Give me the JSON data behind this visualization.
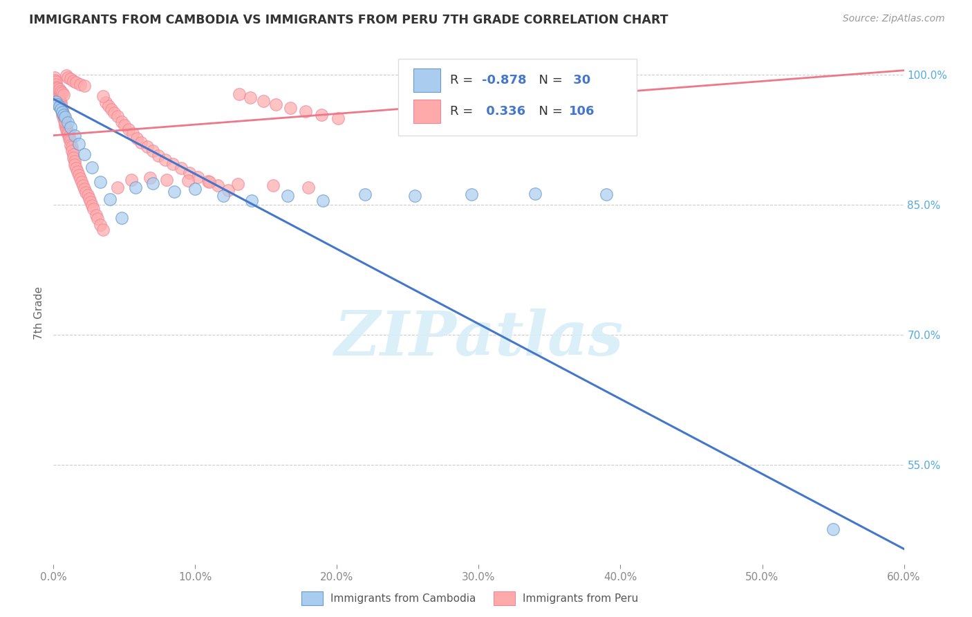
{
  "title": "IMMIGRANTS FROM CAMBODIA VS IMMIGRANTS FROM PERU 7TH GRADE CORRELATION CHART",
  "source": "Source: ZipAtlas.com",
  "ylabel_left": "7th Grade",
  "legend_label_blue": "Immigrants from Cambodia",
  "legend_label_pink": "Immigrants from Peru",
  "R_blue": -0.878,
  "N_blue": 30,
  "R_pink": 0.336,
  "N_pink": 106,
  "xmin": 0.0,
  "xmax": 0.6,
  "ymin": 0.435,
  "ymax": 1.015,
  "yticks": [
    0.55,
    0.7,
    0.85,
    1.0
  ],
  "xticks": [
    0.0,
    0.1,
    0.2,
    0.3,
    0.4,
    0.5,
    0.6
  ],
  "color_blue_fill": "#AACCEE",
  "color_pink_fill": "#FFAAAA",
  "color_blue_edge": "#6699CC",
  "color_pink_edge": "#EE8899",
  "color_blue_line": "#4477CC",
  "color_pink_line": "#EE7788",
  "watermark_text": "ZIPatlas",
  "blue_line_x0": 0.0,
  "blue_line_y0": 0.972,
  "blue_line_x1": 0.6,
  "blue_line_y1": 0.453,
  "pink_line_x0": 0.0,
  "pink_line_y0": 0.93,
  "pink_line_x1": 0.6,
  "pink_line_y1": 1.005,
  "blue_x": [
    0.002,
    0.003,
    0.004,
    0.005,
    0.006,
    0.007,
    0.008,
    0.01,
    0.012,
    0.015,
    0.018,
    0.022,
    0.027,
    0.033,
    0.04,
    0.048,
    0.058,
    0.07,
    0.085,
    0.1,
    0.12,
    0.14,
    0.165,
    0.19,
    0.22,
    0.255,
    0.295,
    0.34,
    0.39,
    0.55
  ],
  "blue_y": [
    0.969,
    0.966,
    0.963,
    0.96,
    0.957,
    0.954,
    0.951,
    0.945,
    0.939,
    0.93,
    0.92,
    0.908,
    0.893,
    0.876,
    0.856,
    0.835,
    0.87,
    0.875,
    0.865,
    0.868,
    0.86,
    0.855,
    0.86,
    0.855,
    0.862,
    0.86,
    0.862,
    0.863,
    0.862,
    0.476
  ],
  "pink_x": [
    0.001,
    0.001,
    0.002,
    0.002,
    0.002,
    0.003,
    0.003,
    0.003,
    0.004,
    0.004,
    0.004,
    0.005,
    0.005,
    0.005,
    0.006,
    0.006,
    0.006,
    0.007,
    0.007,
    0.008,
    0.008,
    0.008,
    0.009,
    0.009,
    0.01,
    0.01,
    0.011,
    0.011,
    0.012,
    0.012,
    0.013,
    0.013,
    0.014,
    0.014,
    0.015,
    0.015,
    0.016,
    0.017,
    0.018,
    0.019,
    0.02,
    0.021,
    0.022,
    0.023,
    0.024,
    0.025,
    0.026,
    0.027,
    0.028,
    0.03,
    0.031,
    0.033,
    0.035,
    0.037,
    0.039,
    0.041,
    0.043,
    0.045,
    0.048,
    0.05,
    0.053,
    0.056,
    0.059,
    0.062,
    0.066,
    0.07,
    0.074,
    0.079,
    0.084,
    0.09,
    0.096,
    0.102,
    0.109,
    0.116,
    0.123,
    0.131,
    0.139,
    0.148,
    0.157,
    0.167,
    0.178,
    0.189,
    0.201,
    0.008,
    0.009,
    0.01,
    0.012,
    0.014,
    0.016,
    0.019,
    0.022,
    0.003,
    0.004,
    0.005,
    0.006,
    0.007,
    0.035,
    0.045,
    0.055,
    0.068,
    0.08,
    0.095,
    0.11,
    0.13,
    0.155,
    0.18
  ],
  "pink_y": [
    0.997,
    0.994,
    0.992,
    0.989,
    0.986,
    0.984,
    0.981,
    0.978,
    0.976,
    0.973,
    0.97,
    0.968,
    0.965,
    0.962,
    0.96,
    0.957,
    0.954,
    0.952,
    0.949,
    0.947,
    0.944,
    0.941,
    0.939,
    0.936,
    0.934,
    0.931,
    0.929,
    0.926,
    0.924,
    0.919,
    0.917,
    0.912,
    0.908,
    0.904,
    0.9,
    0.896,
    0.892,
    0.888,
    0.884,
    0.88,
    0.876,
    0.872,
    0.868,
    0.864,
    0.861,
    0.857,
    0.853,
    0.849,
    0.845,
    0.838,
    0.834,
    0.827,
    0.821,
    0.968,
    0.964,
    0.96,
    0.956,
    0.952,
    0.946,
    0.942,
    0.937,
    0.932,
    0.927,
    0.922,
    0.917,
    0.912,
    0.907,
    0.902,
    0.897,
    0.892,
    0.887,
    0.882,
    0.877,
    0.872,
    0.867,
    0.978,
    0.974,
    0.97,
    0.966,
    0.962,
    0.958,
    0.954,
    0.95,
    0.946,
    0.999,
    0.997,
    0.995,
    0.993,
    0.991,
    0.989,
    0.987,
    0.985,
    0.983,
    0.981,
    0.979,
    0.977,
    0.975,
    0.87,
    0.879,
    0.881,
    0.879,
    0.878,
    0.876,
    0.874,
    0.872,
    0.87
  ]
}
